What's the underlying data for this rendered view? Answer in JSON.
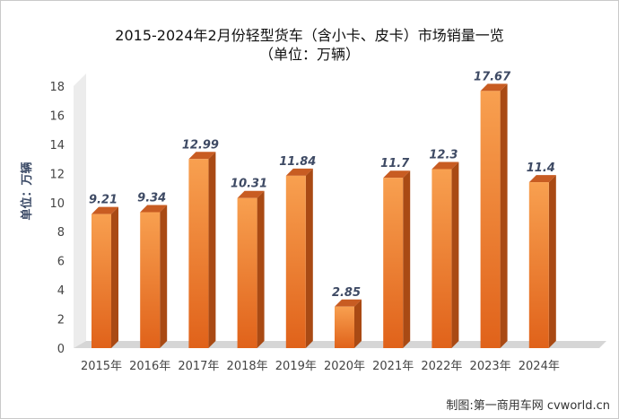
{
  "chart_data": {
    "type": "bar",
    "title": "2015-2024年2月份轻型货车（含小卡、皮卡）市场销量一览",
    "subtitle": "（单位：万辆）",
    "ylabel": "单位：万辆",
    "xlabel": "",
    "ylim": [
      0,
      18
    ],
    "yticks": [
      "0",
      "2",
      "4",
      "6",
      "8",
      "10",
      "12",
      "14",
      "16",
      "18"
    ],
    "categories": [
      "2015年",
      "2016年",
      "2017年",
      "2018年",
      "2019年",
      "2020年",
      "2021年",
      "2022年",
      "2023年",
      "2024年"
    ],
    "values": [
      9.21,
      9.34,
      12.99,
      10.31,
      11.84,
      2.85,
      11.7,
      12.3,
      17.67,
      11.4
    ],
    "value_labels": [
      "9.21",
      "9.34",
      "12.99",
      "10.31",
      "11.84",
      "2.85",
      "11.7",
      "12.3",
      "17.67",
      "11.4"
    ],
    "legend": "none",
    "grid": false,
    "style": "3d-column"
  },
  "colors": {
    "bar_front_top": "#f8a050",
    "bar_front_bottom": "#e0621a",
    "bar_side": "#a94a14",
    "bar_top": "#c85c22",
    "wall": "#ececec",
    "floor": "#d6d6d6"
  },
  "footer": {
    "credit": "制图:第一商用车网 cvworld.cn"
  }
}
